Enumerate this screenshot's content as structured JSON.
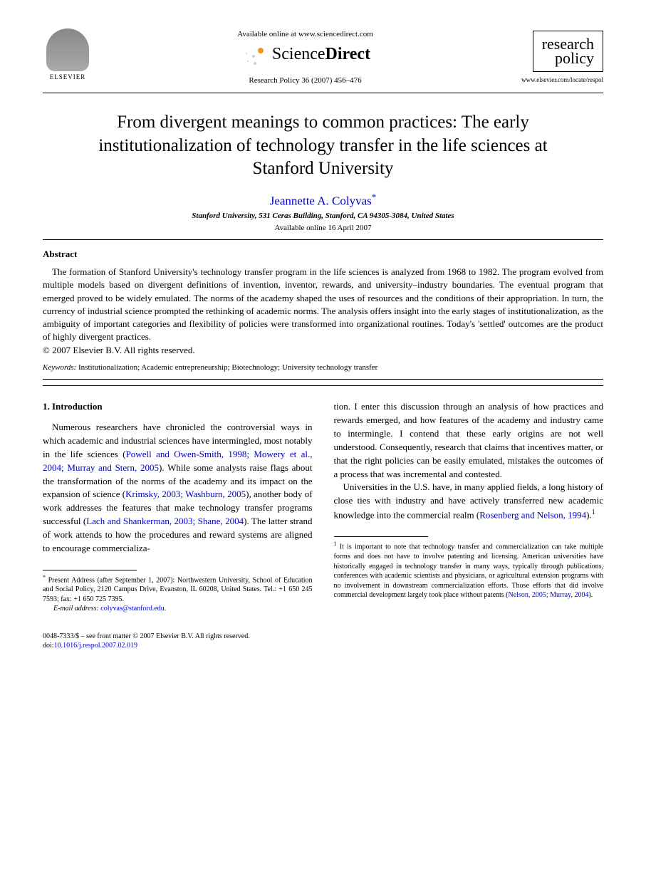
{
  "header": {
    "elsevier_label": "ELSEVIER",
    "available_text": "Available online at www.sciencedirect.com",
    "sd_text_light": "Science",
    "sd_text_bold": "Direct",
    "citation": "Research Policy 36 (2007) 456–476",
    "journal_name_1": "research",
    "journal_name_2": "policy",
    "journal_url": "www.elsevier.com/locate/respol"
  },
  "article": {
    "title": "From divergent meanings to common practices: The early institutionalization of technology transfer in the life sciences at Stanford University",
    "author": "Jeannette A. Colyvas",
    "star": "*",
    "affiliation": "Stanford University, 531 Ceras Building, Stanford, CA 94305-3084, United States",
    "available_date": "Available online 16 April 2007"
  },
  "abstract": {
    "heading": "Abstract",
    "text": "The formation of Stanford University's technology transfer program in the life sciences is analyzed from 1968 to 1982. The program evolved from multiple models based on divergent definitions of invention, inventor, rewards, and university–industry boundaries. The eventual program that emerged proved to be widely emulated. The norms of the academy shaped the uses of resources and the conditions of their appropriation. In turn, the currency of industrial science prompted the rethinking of academic norms. The analysis offers insight into the early stages of institutionalization, as the ambiguity of important categories and flexibility of policies were transformed into organizational routines. Today's 'settled' outcomes are the product of highly divergent practices.",
    "copyright": "© 2007 Elsevier B.V. All rights reserved."
  },
  "keywords": {
    "label": "Keywords:",
    "text": " Institutionalization; Academic entrepreneurship; Biotechnology; University technology transfer"
  },
  "body": {
    "section_num": "1.  Introduction",
    "col1_p1_pre": "Numerous researchers have chronicled the controversial ways in which academic and industrial sciences have intermingled, most notably in the life sciences (",
    "cite1": "Powell and Owen-Smith, 1998; Mowery et al., 2004; Murray and Stern, 2005",
    "col1_p1_mid1": "). While some analysts raise flags about the transformation of the norms of the academy and its impact on the expansion of science (",
    "cite2": "Krimsky, 2003; Washburn, 2005",
    "col1_p1_mid2": "), another body of work addresses the features that make technology transfer programs successful (",
    "cite3": "Lach and Shankerman, 2003; Shane, 2004",
    "col1_p1_end": "). The latter strand of work attends to how the procedures and reward systems are aligned to encourage commercializa-",
    "col2_p1": "tion. I enter this discussion through an analysis of how practices and rewards emerged, and how features of the academy and industry came to intermingle. I contend that these early origins are not well understood. Consequently, research that claims that incentives matter, or that the right policies can be easily emulated, mistakes the outcomes of a process that was incremental and contested.",
    "col2_p2_pre": "Universities in the U.S. have, in many applied fields, a long history of close ties with industry and have actively transferred new academic knowledge into the commercial realm (",
    "cite4": "Rosenberg and Nelson, 1994",
    "col2_p2_end": ").",
    "sup1": "1"
  },
  "footnotes": {
    "left_star": "*",
    "left_text": " Present Address (after September 1, 2007): Northwestern University, School of Education and Social Policy, 2120 Campus Drive, Evanston, IL 60208, United States. Tel.: +1 650 245 7593; fax: +1 650 725 7395.",
    "email_label": "E-mail address:",
    "email": "colyvas@stanford.edu",
    "right_num": "1",
    "right_text_pre": " It is important to note that technology transfer and commercialization can take multiple forms and does not have to involve patenting and licensing. American universities have historically engaged in technology transfer in many ways, typically through publications, conferences with academic scientists and physicians, or agricultural extension programs with no involvement in downstream commercialization efforts. Those efforts that did involve commercial development largely took place without patents (",
    "right_cite": "Nelson, 2005; Murray, 2004",
    "right_text_post": ")."
  },
  "footer": {
    "line1": "0048-7333/$ – see front matter © 2007 Elsevier B.V. All rights reserved.",
    "doi_label": "doi:",
    "doi": "10.1016/j.respol.2007.02.019"
  },
  "colors": {
    "link": "#0000cc",
    "text": "#000000",
    "bg": "#ffffff",
    "orange": "#f7931e"
  }
}
